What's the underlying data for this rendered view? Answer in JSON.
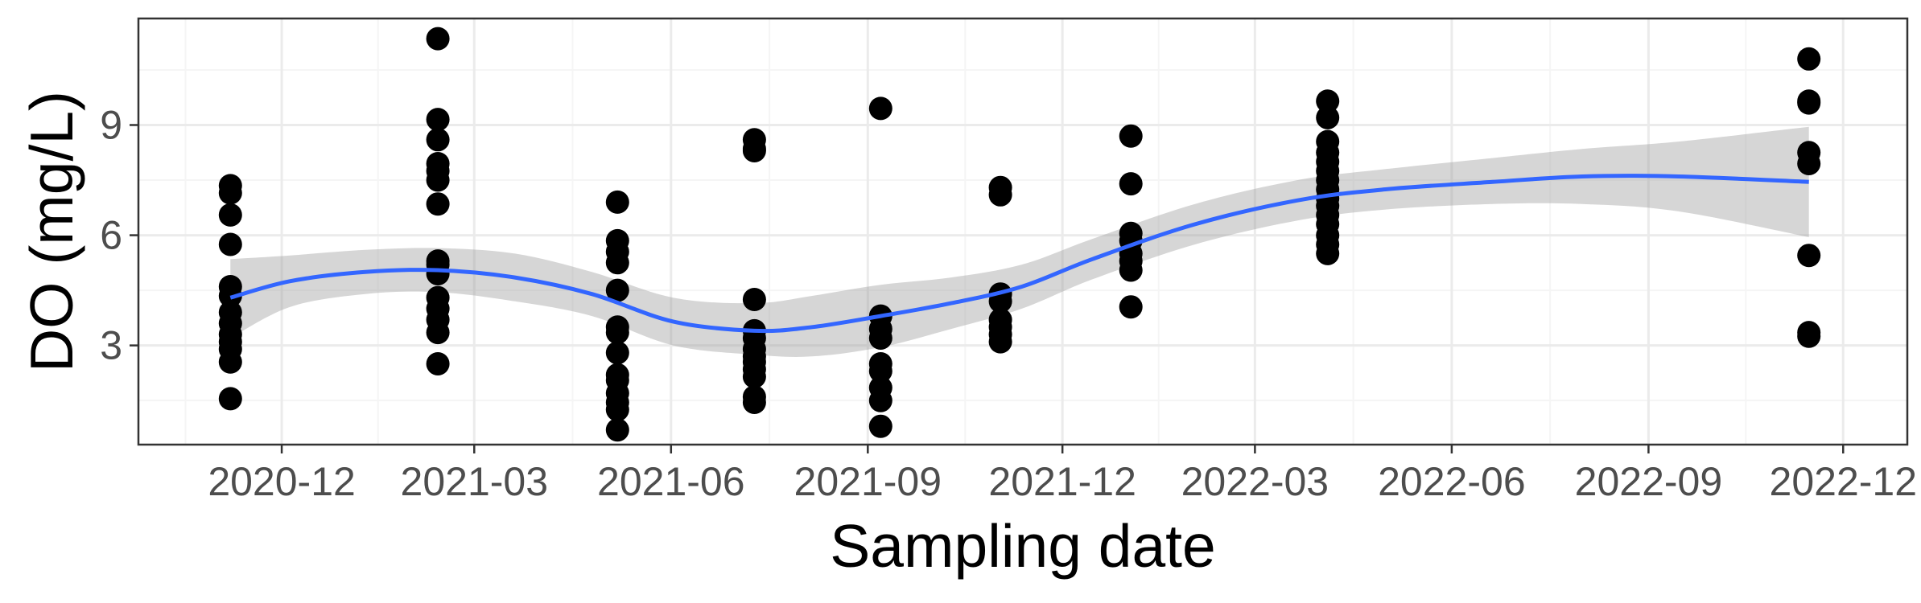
{
  "chart_data": {
    "type": "scatter",
    "title": "",
    "xlabel": "Sampling date",
    "ylabel": "DO (mg/L)",
    "x_axis_type": "date",
    "xlim": [
      "2020-09-25",
      "2022-12-31"
    ],
    "ylim": [
      0.3,
      11.9
    ],
    "x_ticks": [
      "2020-12",
      "2021-03",
      "2021-06",
      "2021-09",
      "2021-12",
      "2022-03",
      "2022-06",
      "2022-09",
      "2022-12"
    ],
    "y_ticks": [
      3,
      6,
      9
    ],
    "grid": true,
    "legend": "none",
    "colors": {
      "points": "#000000",
      "smooth_line": "#3366ff",
      "confidence_band": "#999999",
      "grid_major": "#ebebeb",
      "grid_minor": "#f5f5f5",
      "panel_border": "#333333"
    },
    "series": [
      {
        "kind": "points",
        "points": [
          {
            "date": "2020-11-07",
            "values": [
              7.35,
              7.15,
              6.55,
              5.75,
              4.6,
              4.35,
              3.9,
              3.6,
              3.3,
              3.1,
              2.9,
              2.55,
              1.55
            ]
          },
          {
            "date": "2021-02-12",
            "values": [
              11.35,
              9.15,
              8.6,
              7.95,
              7.75,
              7.5,
              6.85,
              5.3,
              5.2,
              4.95,
              4.3,
              4.0,
              3.7,
              3.35,
              2.5
            ]
          },
          {
            "date": "2021-05-07",
            "values": [
              6.9,
              5.85,
              5.55,
              5.25,
              4.5,
              3.5,
              3.35,
              2.8,
              2.2,
              2.05,
              1.7,
              1.45,
              1.25,
              0.7
            ]
          },
          {
            "date": "2021-07-10",
            "values": [
              8.6,
              8.35,
              8.3,
              4.25,
              3.4,
              3.2,
              2.9,
              2.7,
              2.55,
              2.35,
              2.15,
              1.6,
              1.45
            ]
          },
          {
            "date": "2021-09-07",
            "values": [
              9.45,
              3.8,
              3.45,
              3.2,
              2.5,
              2.3,
              1.85,
              1.5,
              0.8
            ]
          },
          {
            "date": "2021-11-02",
            "values": [
              7.3,
              7.1,
              4.4,
              4.2,
              3.7,
              3.5,
              3.3,
              3.1
            ]
          },
          {
            "date": "2022-01-02",
            "values": [
              8.7,
              7.4,
              6.05,
              5.85,
              5.5,
              5.3,
              5.05,
              4.05
            ]
          },
          {
            "date": "2022-04-04",
            "values": [
              9.65,
              9.2,
              8.55,
              8.25,
              8.0,
              7.75,
              7.5,
              7.25,
              7.0,
              6.8,
              6.55,
              6.3,
              6.0,
              5.75,
              5.5
            ]
          },
          {
            "date": "2022-11-15",
            "values": [
              10.8,
              9.65,
              9.6,
              8.25,
              7.95,
              5.45,
              3.35,
              3.25
            ]
          }
        ]
      },
      {
        "kind": "smooth",
        "line": [
          [
            "2020-11-07",
            4.3
          ],
          [
            "2020-12-05",
            4.75
          ],
          [
            "2021-01-09",
            5.0
          ],
          [
            "2021-02-12",
            5.05
          ],
          [
            "2021-03-20",
            4.85
          ],
          [
            "2021-04-25",
            4.4
          ],
          [
            "2021-06-02",
            3.65
          ],
          [
            "2021-07-10",
            3.4
          ],
          [
            "2021-08-06",
            3.5
          ],
          [
            "2021-09-07",
            3.8
          ],
          [
            "2021-10-10",
            4.15
          ],
          [
            "2021-11-12",
            4.6
          ],
          [
            "2021-12-15",
            5.35
          ],
          [
            "2022-02-01",
            6.3
          ],
          [
            "2022-03-21",
            6.95
          ],
          [
            "2022-05-01",
            7.25
          ],
          [
            "2022-06-20",
            7.45
          ],
          [
            "2022-08-01",
            7.6
          ],
          [
            "2022-09-15",
            7.6
          ],
          [
            "2022-11-15",
            7.45
          ]
        ],
        "band_upper": [
          [
            "2020-11-07",
            5.35
          ],
          [
            "2020-12-05",
            5.45
          ],
          [
            "2021-01-09",
            5.6
          ],
          [
            "2021-02-12",
            5.65
          ],
          [
            "2021-03-20",
            5.5
          ],
          [
            "2021-04-25",
            5.0
          ],
          [
            "2021-06-02",
            4.3
          ],
          [
            "2021-07-10",
            4.15
          ],
          [
            "2021-08-06",
            4.35
          ],
          [
            "2021-09-07",
            4.65
          ],
          [
            "2021-10-10",
            4.85
          ],
          [
            "2021-11-12",
            5.2
          ],
          [
            "2021-12-15",
            5.9
          ],
          [
            "2022-02-01",
            6.85
          ],
          [
            "2022-03-21",
            7.5
          ],
          [
            "2022-05-01",
            7.8
          ],
          [
            "2022-06-20",
            8.1
          ],
          [
            "2022-08-01",
            8.35
          ],
          [
            "2022-09-15",
            8.55
          ],
          [
            "2022-11-15",
            8.95
          ]
        ],
        "band_lower": [
          [
            "2020-11-07",
            3.2
          ],
          [
            "2020-12-05",
            4.05
          ],
          [
            "2021-01-09",
            4.4
          ],
          [
            "2021-02-12",
            4.45
          ],
          [
            "2021-03-20",
            4.2
          ],
          [
            "2021-04-25",
            3.8
          ],
          [
            "2021-06-02",
            3.0
          ],
          [
            "2021-07-10",
            2.75
          ],
          [
            "2021-08-06",
            2.7
          ],
          [
            "2021-09-07",
            2.95
          ],
          [
            "2021-10-10",
            3.45
          ],
          [
            "2021-11-12",
            4.0
          ],
          [
            "2021-12-15",
            4.8
          ],
          [
            "2022-02-01",
            5.75
          ],
          [
            "2022-03-21",
            6.4
          ],
          [
            "2022-05-01",
            6.7
          ],
          [
            "2022-06-20",
            6.85
          ],
          [
            "2022-08-01",
            6.85
          ],
          [
            "2022-09-15",
            6.65
          ],
          [
            "2022-11-15",
            5.95
          ]
        ]
      }
    ]
  }
}
